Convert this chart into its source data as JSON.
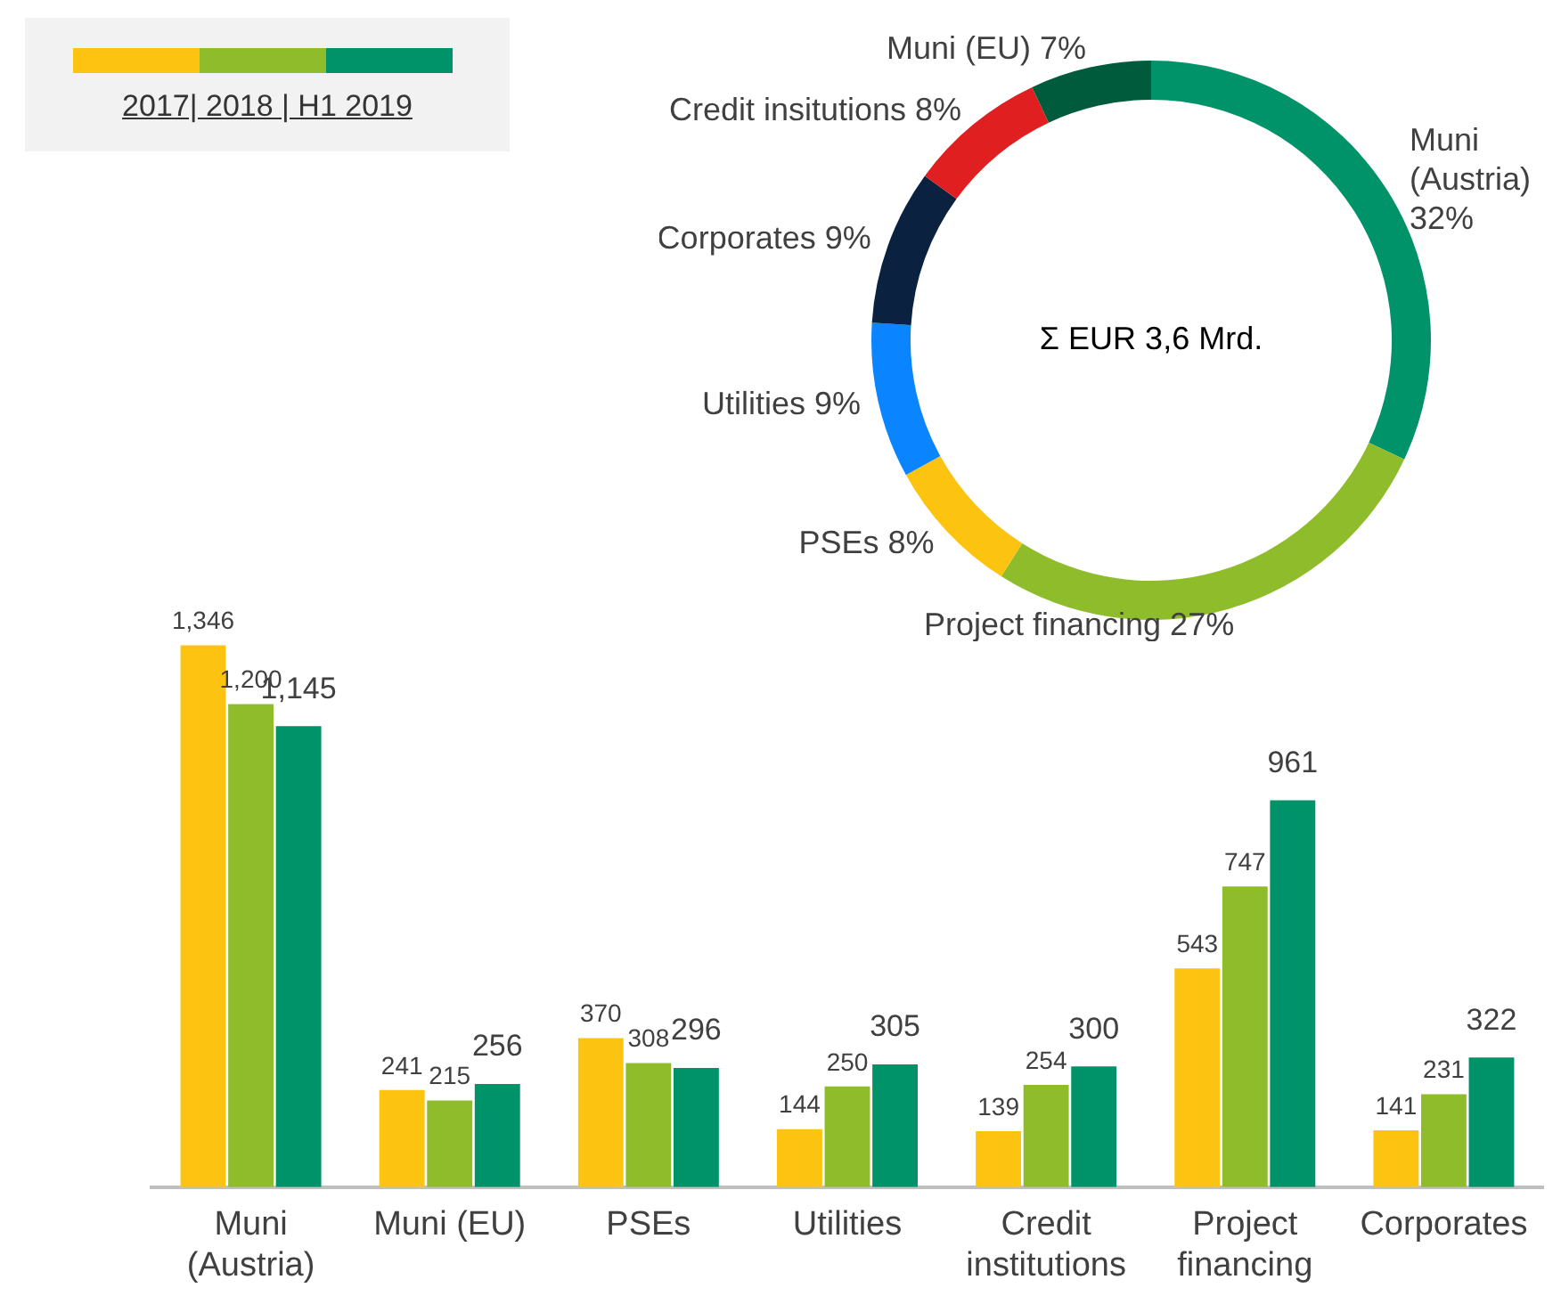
{
  "chart_data": [
    {
      "type": "donut",
      "categories": [
        "Muni (Austria)",
        "Project financing",
        "PSEs",
        "Utilities",
        "Corporates",
        "Credit insitutions",
        "Muni (EU)"
      ],
      "values": [
        32,
        27,
        8,
        9,
        9,
        8,
        7
      ],
      "colors": [
        "#00936a",
        "#8fbc2a",
        "#fdc311",
        "#0a84ff",
        "#0a2240",
        "#e02020",
        "#005a3c"
      ],
      "value_labels": [
        "32%",
        "27%",
        "8%",
        "9%",
        "9%",
        "8%",
        "7%"
      ],
      "annotations": [
        "Σ EUR 3,6 Mrd."
      ]
    },
    {
      "type": "bar",
      "categories": [
        "Muni (Austria)",
        "Muni (EU)",
        "PSEs",
        "Utilities",
        "Credit institutions",
        "Project financing",
        "Corporates"
      ],
      "legend_title": "2017| 2018 | H1 2019",
      "series": [
        {
          "color": "#fdc311",
          "values": [
            1346,
            241,
            370,
            144,
            139,
            543,
            141
          ],
          "value_labels": [
            "1,346",
            "241",
            "370",
            "144",
            "139",
            "543",
            "141"
          ]
        },
        {
          "color": "#8fbc2a",
          "values": [
            1200,
            215,
            308,
            250,
            254,
            747,
            231
          ],
          "value_labels": [
            "1,200",
            "215",
            "308",
            "250",
            "254",
            "747",
            "231"
          ]
        },
        {
          "color": "#00936a",
          "values": [
            1145,
            256,
            296,
            305,
            300,
            961,
            322
          ],
          "value_labels": [
            "1,145",
            "256",
            "296",
            "305",
            "300",
            "961",
            "322"
          ]
        }
      ]
    }
  ]
}
